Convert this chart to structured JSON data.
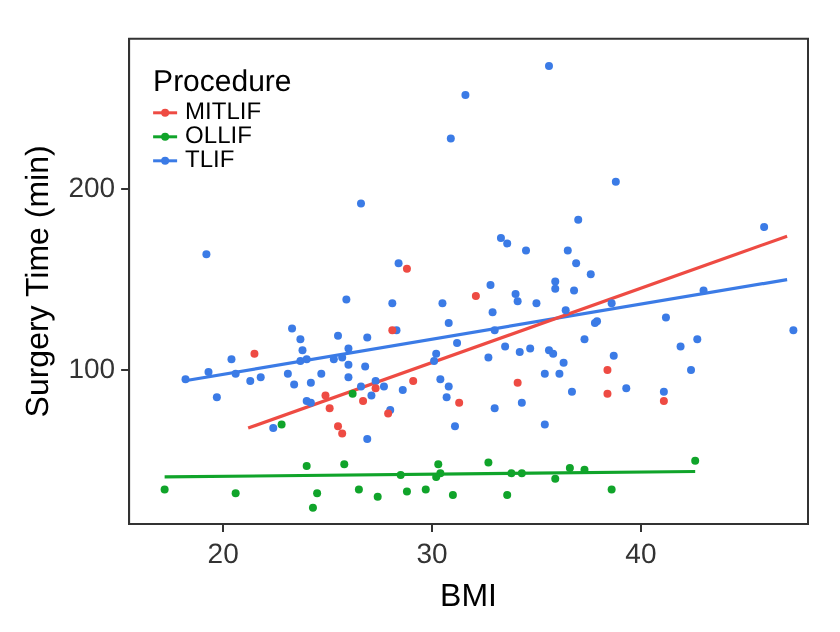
{
  "chart_data": {
    "type": "scatter",
    "xlabel": "BMI",
    "ylabel": "Surgery Time (min)",
    "legend_title": "Procedure",
    "legend": "top left",
    "grid": false,
    "marker": "circle",
    "xlim": [
      15.5,
      48
    ],
    "ylim": [
      15,
      283
    ],
    "xticks": [
      20,
      30,
      40
    ],
    "yticks": [
      100,
      200
    ],
    "series": [
      {
        "name": "MITLIF",
        "color": "#ee4b43",
        "type": "scatter",
        "x": [
          29.1,
          21.5,
          28.1,
          24.9,
          25.1,
          25.5,
          25.7,
          26.7,
          27.9,
          27.3,
          32.1,
          38.4,
          38.4,
          41.1,
          34.1,
          31.3,
          28.8
        ],
        "values": [
          94,
          109,
          122,
          86,
          79,
          69,
          65,
          83,
          76,
          90,
          141,
          100,
          87,
          83,
          93,
          82,
          156
        ]
      },
      {
        "name": "OLLIF",
        "color": "#10a42a",
        "type": "scatter",
        "x": [
          22.8,
          26.2,
          24,
          25.8,
          17.2,
          20.6,
          24.5,
          24.3,
          26.5,
          27.4,
          28.5,
          28.8,
          42.6,
          38.6,
          37.3,
          36.6,
          35.9,
          34.3,
          33.8,
          32.7,
          33.6,
          30.3,
          30.4,
          30.2,
          29.7,
          31
        ],
        "values": [
          70,
          87,
          47,
          48,
          34,
          32,
          32,
          24,
          34,
          30,
          42,
          33,
          50,
          34,
          45,
          46,
          40,
          43,
          43,
          49,
          31,
          48,
          43,
          41,
          34,
          31
        ]
      },
      {
        "name": "TLIF",
        "color": "#3b7be6",
        "type": "scatter",
        "x": [
          18.2,
          19.3,
          19.7,
          20.4,
          20.6,
          21.3,
          21.8,
          23.3,
          23.7,
          23.1,
          23.4,
          23.8,
          23.7,
          24,
          24.2,
          24,
          24.7,
          25.3,
          25.5,
          25.7,
          26,
          26,
          26,
          26.9,
          26.8,
          26.6,
          27.1,
          27.3,
          27.7,
          28.3,
          28.6,
          22.4,
          26.9,
          25.9,
          28.1,
          24.2,
          28,
          19.2,
          26.6,
          28.4,
          35.6,
          31.6,
          30.9,
          38.8,
          45.9,
          37,
          33.3,
          33.6,
          34.5,
          36.5,
          36.9,
          37.6,
          35.9,
          36.8,
          35.9,
          32.8,
          34,
          34.1,
          35,
          30.5,
          36.4,
          32.9,
          37.9,
          41.2,
          47.3,
          43,
          38.6,
          30.8,
          33,
          37.3,
          37.8,
          41.9,
          42.7,
          31.2,
          33.5,
          34.2,
          34.7,
          35.6,
          35.8,
          36.3,
          38.7,
          32.7,
          30.2,
          30.1,
          36.1,
          35.4,
          30.4,
          30.8,
          30.7,
          33,
          34.3,
          36.7,
          39.3,
          41.1,
          42.4,
          31.1,
          35.4
        ],
        "values": [
          95,
          99,
          85,
          106,
          98,
          94,
          96,
          123,
          117,
          98,
          92,
          111,
          105,
          106,
          93,
          83,
          98,
          106,
          119,
          107,
          112,
          103,
          96,
          118,
          102,
          91,
          86,
          94,
          91,
          122,
          89,
          68,
          62,
          139,
          137,
          82,
          78,
          164,
          192,
          159,
          268,
          252,
          228,
          204,
          179,
          183,
          173,
          170,
          166,
          166,
          159,
          153,
          149,
          144,
          145,
          147,
          142,
          138,
          137,
          137,
          133,
          132,
          127,
          129,
          122,
          144,
          137,
          126,
          122,
          117,
          126,
          113,
          117,
          115,
          113,
          110,
          112,
          111,
          109,
          104,
          108,
          107,
          109,
          105,
          98,
          98,
          95,
          91,
          85,
          79,
          82,
          88,
          90,
          88,
          100,
          69,
          70
        ]
      },
      {
        "color": "#ee4b43",
        "type": "line",
        "marker": "none",
        "x": [
          21.2,
          47
        ],
        "values": [
          68,
          174
        ]
      },
      {
        "color": "#10a42a",
        "type": "line",
        "marker": "none",
        "x": [
          17.2,
          42.6
        ],
        "values": [
          41,
          44
        ]
      },
      {
        "color": "#3b7be6",
        "type": "line",
        "marker": "none",
        "x": [
          18.1,
          47
        ],
        "values": [
          94,
          150
        ]
      }
    ]
  }
}
